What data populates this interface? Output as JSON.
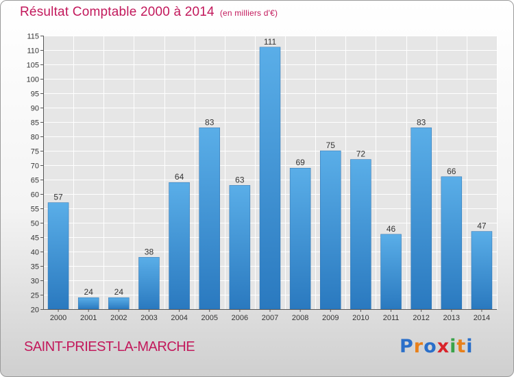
{
  "chart_data": {
    "type": "bar",
    "title": "Résultat Comptable 2000 à 2014",
    "unit_label": "(en milliers d'€)",
    "categories": [
      "2000",
      "2001",
      "2002",
      "2003",
      "2004",
      "2005",
      "2006",
      "2007",
      "2008",
      "2009",
      "2010",
      "2011",
      "2012",
      "2013",
      "2014"
    ],
    "values": [
      57,
      24,
      24,
      38,
      64,
      83,
      63,
      111,
      69,
      75,
      72,
      46,
      83,
      66,
      47
    ],
    "ylim": [
      20,
      115
    ],
    "yticks": [
      20,
      25,
      30,
      35,
      40,
      45,
      50,
      55,
      60,
      65,
      70,
      75,
      80,
      85,
      90,
      95,
      100,
      105,
      110,
      115
    ],
    "xlabel": "",
    "ylabel": "",
    "grid": true,
    "bar_color": "#3b8fd6"
  },
  "location": "SAINT-PRIEST-LA-MARCHE",
  "logo_letters": [
    {
      "ch": "P",
      "color": "#2a6fc9"
    },
    {
      "ch": "r",
      "color": "#e8801a"
    },
    {
      "ch": "o",
      "color": "#2a6fc9"
    },
    {
      "ch": "x",
      "color": "#d9232a"
    },
    {
      "ch": "i",
      "color": "#3aa34a"
    },
    {
      "ch": "t",
      "color": "#e8801a"
    },
    {
      "ch": "i",
      "color": "#2a6fc9"
    }
  ]
}
